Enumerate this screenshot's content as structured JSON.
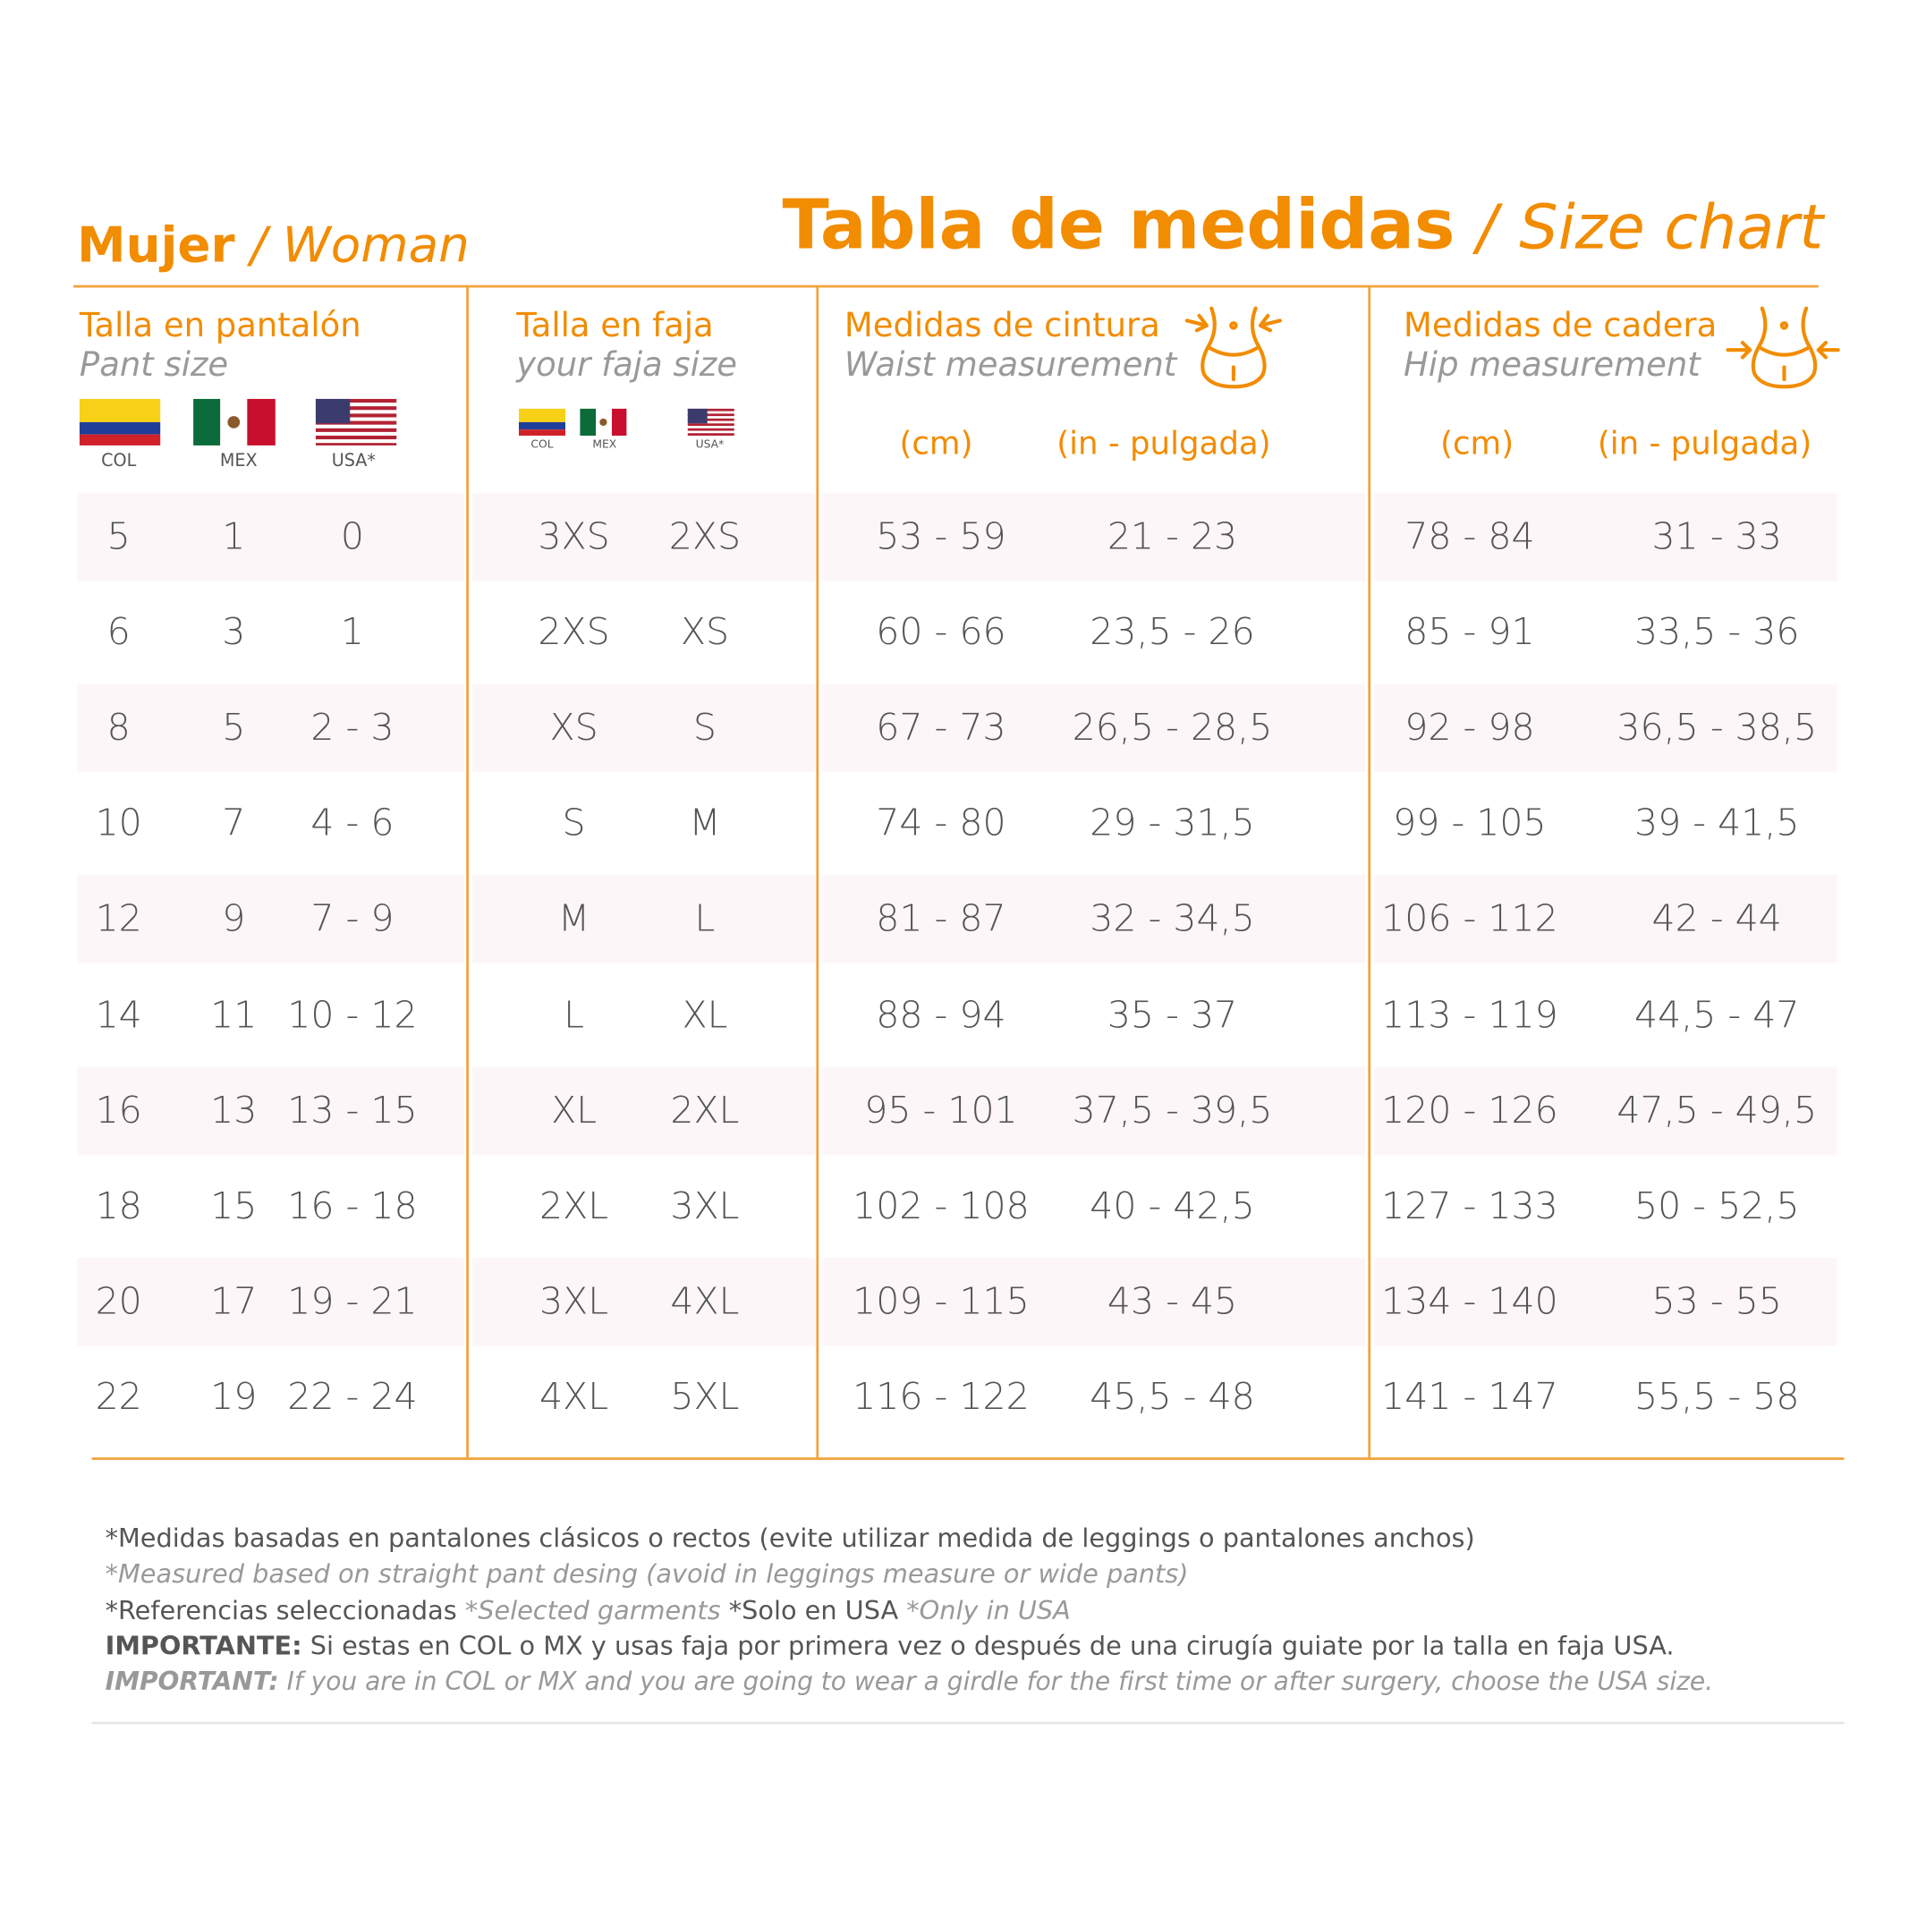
{
  "header": {
    "section": "Mujer",
    "section_sep": "/",
    "section_en": "Woman",
    "title": "Tabla de medidas",
    "title_sep": "/",
    "title_en": "Size chart"
  },
  "columns": {
    "pant": {
      "title": "Talla en pantalón",
      "subtitle": "Pant size",
      "flags": [
        "COL",
        "MEX",
        "USA*"
      ]
    },
    "faja": {
      "title": "Talla en faja",
      "subtitle": "your faja size",
      "flags": [
        "COL",
        "MEX",
        "USA*"
      ]
    },
    "waist": {
      "title": "Medidas de cintura",
      "subtitle": "Waist measurement",
      "units": [
        "(cm)",
        "(in - pulgada)"
      ]
    },
    "hip": {
      "title": "Medidas de cadera",
      "subtitle": "Hip measurement",
      "units": [
        "(cm)",
        "(in - pulgada)"
      ]
    }
  },
  "table": {
    "rows": [
      [
        "5",
        "1",
        "0",
        "3XS",
        "2XS",
        "53 - 59",
        "21 - 23",
        "78 - 84",
        "31 - 33"
      ],
      [
        "6",
        "3",
        "1",
        "2XS",
        "XS",
        "60 - 66",
        "23,5 - 26",
        "85 - 91",
        "33,5 - 36"
      ],
      [
        "8",
        "5",
        "2 - 3",
        "XS",
        "S",
        "67 - 73",
        "26,5 - 28,5",
        "92 - 98",
        "36,5 - 38,5"
      ],
      [
        "10",
        "7",
        "4 - 6",
        "S",
        "M",
        "74 - 80",
        "29 - 31,5",
        "99 - 105",
        "39 - 41,5"
      ],
      [
        "12",
        "9",
        "7 - 9",
        "M",
        "L",
        "81 - 87",
        "32 - 34,5",
        "106 - 112",
        "42 - 44"
      ],
      [
        "14",
        "11",
        "10 - 12",
        "L",
        "XL",
        "88 - 94",
        "35 - 37",
        "113 - 119",
        "44,5 - 47"
      ],
      [
        "16",
        "13",
        "13 - 15",
        "XL",
        "2XL",
        "95 - 101",
        "37,5 - 39,5",
        "120 - 126",
        "47,5 - 49,5"
      ],
      [
        "18",
        "15",
        "16 - 18",
        "2XL",
        "3XL",
        "102 - 108",
        "40 - 42,5",
        "127 - 133",
        "50 - 52,5"
      ],
      [
        "20",
        "17",
        "19 - 21",
        "3XL",
        "4XL",
        "109 - 115",
        "43 - 45",
        "134 - 140",
        "53 - 55"
      ],
      [
        "22",
        "19",
        "22 - 24",
        "4XL",
        "5XL",
        "116 - 122",
        "45,5 - 48",
        "141 - 147",
        "55,5 - 58"
      ]
    ]
  },
  "footer": {
    "note_es": "*Medidas basadas en pantalones clásicos o rectos (evite utilizar medida de leggings o pantalones anchos)",
    "note_en": "*Measured based on straight pant desing (avoid in leggings measure or wide pants)",
    "ref_es": "*Referencias seleccionadas",
    "ref_en": "*Selected garments",
    "usa_es": "*Solo en USA",
    "usa_en": "*Only in USA",
    "important_es_label": "IMPORTANTE:",
    "important_es": "Si estas en COL o MX y usas faja por primera vez o después de una cirugía guiate por la talla en faja USA.",
    "important_en_label": "IMPORTANT:",
    "important_en": "If you are in COL or MX and you are going to wear a girdle for the first time or after surgery, choose the USA size."
  }
}
